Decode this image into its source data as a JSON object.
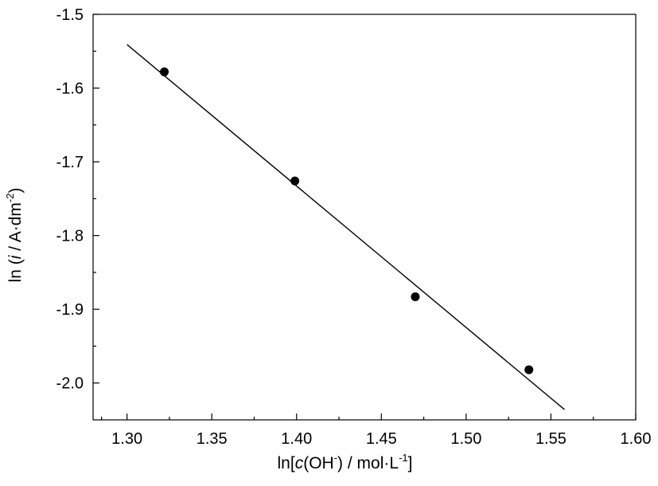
{
  "chart_data": {
    "type": "scatter",
    "x_axis": {
      "label_prefix": "ln[",
      "label_italic": "c",
      "label_paren_open": "(OH",
      "label_sup1": "-",
      "label_mid": ") / mol·L",
      "label_sup2": "-1",
      "label_suffix": "]",
      "range": [
        1.28,
        1.6
      ],
      "ticks": [
        "1.30",
        "1.35",
        "1.40",
        "1.45",
        "1.50",
        "1.55",
        "1.60"
      ]
    },
    "y_axis": {
      "label_prefix": "ln (",
      "label_italic": "i",
      "label_mid": " / A·dm",
      "label_sup": "-2",
      "label_suffix": ")",
      "range": [
        -2.05,
        -1.5
      ],
      "ticks": [
        "-2.0",
        "-1.9",
        "-1.8",
        "-1.7",
        "-1.6",
        "-1.5"
      ]
    },
    "points": [
      {
        "x": 1.322,
        "y": -1.578
      },
      {
        "x": 1.399,
        "y": -1.726
      },
      {
        "x": 1.47,
        "y": -1.883
      },
      {
        "x": 1.537,
        "y": -1.982
      }
    ],
    "fit_line": {
      "x": [
        1.3,
        1.558
      ],
      "y": [
        -1.541,
        -2.036
      ]
    },
    "grid": false,
    "legend": "none"
  }
}
